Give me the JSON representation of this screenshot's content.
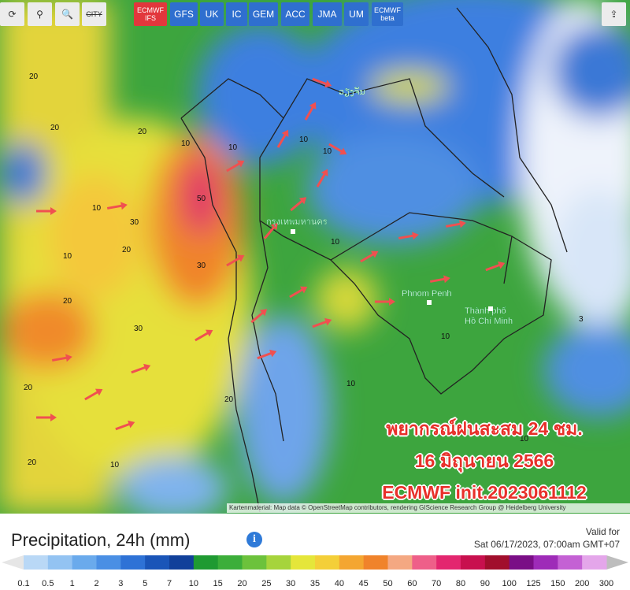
{
  "toolbar": {
    "tools": [
      "CITY"
    ],
    "models": [
      "ECMWF IFS",
      "GFS",
      "UK",
      "IC",
      "GEM",
      "ACC",
      "JMA",
      "UM",
      "ECMWF beta"
    ]
  },
  "map": {
    "places": [
      "กรุงเทพมหานคร",
      "ວຽງຈັນ",
      "Phnom Penh",
      "Thành phố",
      "Hồ Chí Minh"
    ],
    "contours": [
      "20",
      "20",
      "20",
      "10",
      "20",
      "30",
      "50",
      "20",
      "10",
      "10",
      "30",
      "20",
      "30",
      "10",
      "10",
      "10",
      "20",
      "10",
      "10",
      "20",
      "10",
      "3",
      "10",
      "10"
    ],
    "overlay": [
      "พยากรณ์ฝนสะสม 24 ชม.",
      "16 มิถุนายน 2566",
      "ECMWF init.2023061112"
    ],
    "attribution": "Kartenmaterial: Map data © OpenStreetMap contributors, rendering GIScience Research Group @ Heidelberg University"
  },
  "legend": {
    "title": "Precipitation, 24h (mm)",
    "valid_for": [
      "Valid for",
      "Sat 06/17/2023, 07:00am GMT+07"
    ],
    "labels": [
      "0.1",
      "0.5",
      "1",
      "2",
      "3",
      "5",
      "7",
      "10",
      "15",
      "20",
      "25",
      "30",
      "35",
      "40",
      "45",
      "50",
      "60",
      "70",
      "80",
      "90",
      "100",
      "125",
      "150",
      "200",
      "300"
    ]
  }
}
